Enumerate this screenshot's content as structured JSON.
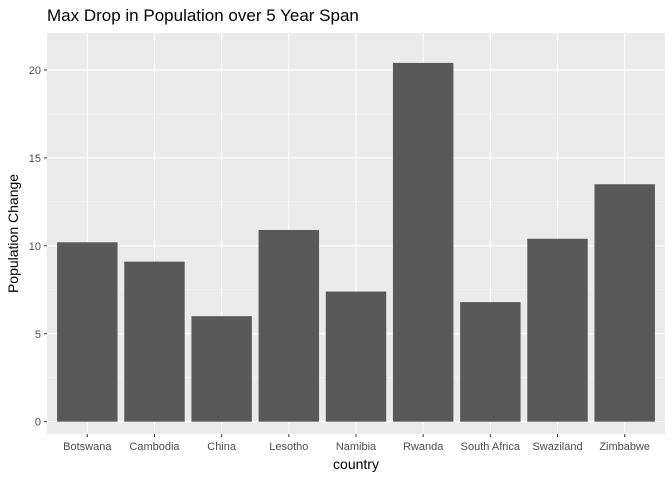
{
  "chart_data": {
    "type": "bar",
    "title": "Max Drop in Population over 5 Year Span",
    "xlabel": "country",
    "ylabel": "Population Change",
    "categories": [
      "Botswana",
      "Cambodia",
      "China",
      "Lesotho",
      "Namibia",
      "Rwanda",
      "South Africa",
      "Swaziland",
      "Zimbabwe"
    ],
    "values": [
      10.2,
      9.1,
      6.0,
      10.9,
      7.4,
      20.4,
      6.8,
      10.4,
      13.5
    ],
    "yticks": [
      0,
      5,
      10,
      15,
      20
    ],
    "ylim": [
      -0.7,
      22.1
    ],
    "grid": true,
    "legend": "none",
    "colors": {
      "bar": "#595959",
      "panel": "#ebebeb",
      "grid_major": "#ffffff",
      "grid_minor": "#f5f5f5",
      "tick_text": "#4d4d4d",
      "tick_mark": "#333333"
    }
  }
}
